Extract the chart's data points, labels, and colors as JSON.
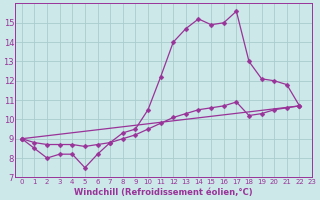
{
  "title": "",
  "xlabel": "Windchill (Refroidissement éolien,°C)",
  "background_color": "#cce8e8",
  "grid_color": "#aacccc",
  "line_color": "#993399",
  "xlim": [
    -0.5,
    23
  ],
  "ylim": [
    7,
    16
  ],
  "xticks": [
    0,
    1,
    2,
    3,
    4,
    5,
    6,
    7,
    8,
    9,
    10,
    11,
    12,
    13,
    14,
    15,
    16,
    17,
    18,
    19,
    20,
    21,
    22,
    23
  ],
  "yticks": [
    7,
    8,
    9,
    10,
    11,
    12,
    13,
    14,
    15
  ],
  "series1_x": [
    0,
    1,
    2,
    3,
    4,
    5,
    6,
    7,
    8,
    9,
    10,
    11,
    12,
    13,
    14,
    15,
    16,
    17,
    18,
    19,
    20,
    21,
    22
  ],
  "series1_y": [
    9.0,
    8.5,
    8.0,
    8.2,
    8.2,
    7.5,
    8.2,
    8.8,
    9.3,
    9.5,
    10.5,
    12.2,
    14.0,
    14.7,
    15.2,
    14.9,
    15.0,
    15.6,
    13.0,
    12.1,
    12.0,
    11.8,
    10.7
  ],
  "series2_x": [
    0,
    22
  ],
  "series2_y": [
    9.0,
    10.7
  ],
  "series3_x": [
    0,
    1,
    2,
    3,
    4,
    5,
    6,
    7,
    8,
    9,
    10,
    11,
    12,
    13,
    14,
    15,
    16,
    17,
    18,
    19,
    20,
    21,
    22
  ],
  "series3_y": [
    9.0,
    8.8,
    8.7,
    8.7,
    8.7,
    8.6,
    8.7,
    8.8,
    9.0,
    9.2,
    9.5,
    9.8,
    10.1,
    10.3,
    10.5,
    10.6,
    10.7,
    10.9,
    10.2,
    10.3,
    10.5,
    10.6,
    10.7
  ],
  "xlabel_fontsize": 6,
  "tick_fontsize": 5.5,
  "marker_size": 2.5,
  "linewidth": 0.9
}
